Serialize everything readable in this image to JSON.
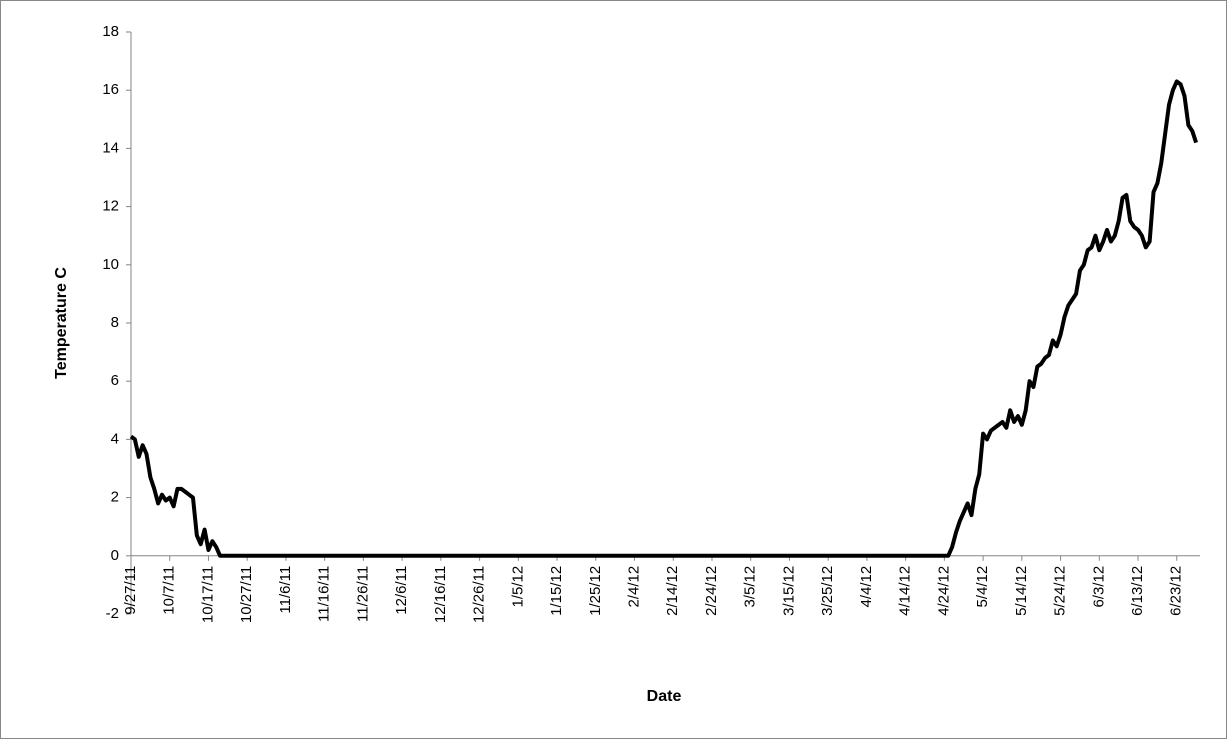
{
  "chart_data": {
    "type": "line",
    "xlabel": "Date",
    "ylabel": "Temperature C",
    "color": "#000000",
    "x": [
      "9/27/11",
      "9/28/11",
      "9/29/11",
      "9/30/11",
      "10/1/11",
      "10/2/11",
      "10/3/11",
      "10/4/11",
      "10/5/11",
      "10/6/11",
      "10/7/11",
      "10/8/11",
      "10/9/11",
      "10/10/11",
      "10/11/11",
      "10/12/11",
      "10/13/11",
      "10/14/11",
      "10/15/11",
      "10/16/11",
      "10/17/11",
      "10/18/11",
      "10/19/11",
      "10/20/11",
      "4/25/12",
      "4/26/12",
      "4/27/12",
      "4/28/12",
      "4/29/12",
      "4/30/12",
      "5/1/12",
      "5/2/12",
      "5/3/12",
      "5/4/12",
      "5/5/12",
      "5/6/12",
      "5/7/12",
      "5/8/12",
      "5/9/12",
      "5/10/12",
      "5/11/12",
      "5/12/12",
      "5/13/12",
      "5/14/12",
      "5/15/12",
      "5/16/12",
      "5/17/12",
      "5/18/12",
      "5/19/12",
      "5/20/12",
      "5/21/12",
      "5/22/12",
      "5/23/12",
      "5/24/12",
      "5/25/12",
      "5/26/12",
      "5/27/12",
      "5/28/12",
      "5/29/12",
      "5/30/12",
      "5/31/12",
      "6/1/12",
      "6/2/12",
      "6/3/12",
      "6/4/12",
      "6/5/12",
      "6/6/12",
      "6/7/12",
      "6/8/12",
      "6/9/12",
      "6/10/12",
      "6/11/12",
      "6/12/12",
      "6/13/12",
      "6/14/12",
      "6/15/12",
      "6/16/12",
      "6/17/12",
      "6/18/12",
      "6/19/12",
      "6/20/12",
      "6/21/12",
      "6/22/12",
      "6/23/12",
      "6/24/12",
      "6/25/12",
      "6/26/12",
      "6/27/12",
      "6/28/12"
    ],
    "values": [
      4.1,
      4.0,
      3.4,
      3.8,
      3.5,
      2.7,
      2.3,
      1.8,
      2.1,
      1.9,
      2.0,
      1.7,
      2.3,
      2.3,
      2.2,
      2.1,
      2.0,
      0.7,
      0.4,
      0.9,
      0.2,
      0.5,
      0.3,
      0,
      0,
      0.3,
      0.8,
      1.2,
      1.5,
      1.8,
      1.4,
      2.3,
      2.8,
      4.2,
      4.0,
      4.3,
      4.4,
      4.5,
      4.6,
      4.4,
      5.0,
      4.6,
      4.8,
      4.5,
      5.0,
      6.0,
      5.8,
      6.5,
      6.6,
      6.8,
      6.9,
      7.4,
      7.2,
      7.6,
      8.2,
      8.6,
      8.8,
      9.0,
      9.8,
      10.0,
      10.5,
      10.6,
      11.0,
      10.5,
      10.8,
      11.2,
      10.8,
      11.0,
      11.5,
      12.3,
      12.4,
      11.5,
      11.3,
      11.2,
      11.0,
      10.6,
      10.8,
      12.5,
      12.8,
      13.5,
      14.5,
      15.5,
      16.0,
      16.3,
      16.2,
      15.8,
      14.8,
      14.6,
      14.2
    ],
    "xlim": [
      "9/27/11",
      "6/29/12"
    ],
    "xticks": [
      "9/27/11",
      "10/7/11",
      "10/17/11",
      "10/27/11",
      "11/6/11",
      "11/16/11",
      "11/26/11",
      "12/6/11",
      "12/16/11",
      "12/26/11",
      "1/5/12",
      "1/15/12",
      "1/25/12",
      "2/4/12",
      "2/14/12",
      "2/24/12",
      "3/5/12",
      "3/15/12",
      "3/25/12",
      "4/4/12",
      "4/14/12",
      "4/24/12",
      "5/4/12",
      "5/14/12",
      "5/24/12",
      "6/3/12",
      "6/13/12",
      "6/23/12"
    ],
    "ylim": [
      -2,
      18
    ],
    "yticks": [
      -2,
      0,
      2,
      4,
      6,
      8,
      10,
      12,
      14,
      16,
      18
    ],
    "grid": false
  }
}
